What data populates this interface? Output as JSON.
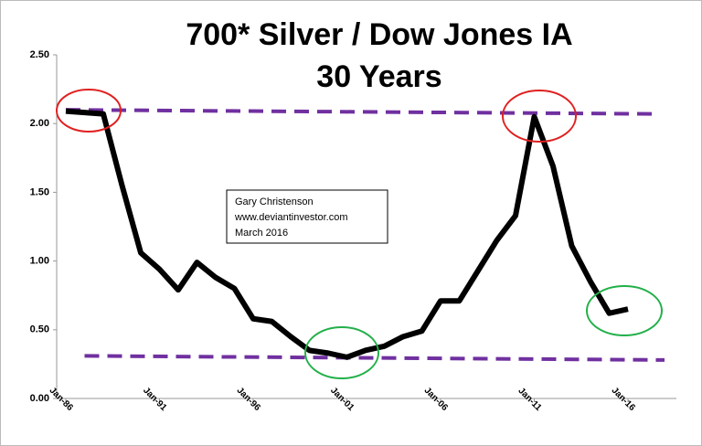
{
  "chart_data": {
    "type": "line",
    "title": "700* Silver / Dow Jones IA",
    "subtitle": "30 Years",
    "categories": [
      "Jan-86",
      null,
      null,
      null,
      null,
      "Jan-91",
      null,
      null,
      null,
      null,
      "Jan-96",
      null,
      null,
      null,
      null,
      "Jan-01",
      null,
      null,
      null,
      null,
      "Jan-06",
      null,
      null,
      null,
      null,
      "Jan-11",
      null,
      null,
      null,
      null,
      "Jan-16"
    ],
    "series": [
      {
        "color": "#000000",
        "values": [
          2.09,
          2.08,
          2.07,
          1.55,
          1.06,
          0.94,
          0.79,
          0.99,
          0.88,
          0.8,
          0.58,
          0.56,
          0.45,
          0.35,
          0.33,
          0.3,
          0.35,
          0.38,
          0.45,
          0.49,
          0.71,
          0.71,
          0.93,
          1.15,
          1.33,
          2.05,
          1.69,
          1.11,
          0.85,
          0.62,
          0.65
        ]
      }
    ],
    "reference_lines": [
      {
        "color": "#7030a0",
        "values": [
          2.1,
          2.07
        ]
      },
      {
        "color": "#7030a0",
        "values": [
          0.31,
          0.28
        ]
      }
    ],
    "annotation": [
      "Gary Christenson",
      "www.deviantinvestor.com",
      "March 2016"
    ],
    "ylim": [
      0,
      2.5
    ],
    "yticks": [
      {
        "value": 0,
        "label": "0.00"
      },
      {
        "value": 0.5,
        "label": "0.50"
      },
      {
        "value": 1,
        "label": "1.00"
      },
      {
        "value": 1.5,
        "label": "1.50"
      },
      {
        "value": 2,
        "label": "2.00"
      },
      {
        "value": 2.5,
        "label": "2.50"
      }
    ],
    "grid": false
  }
}
